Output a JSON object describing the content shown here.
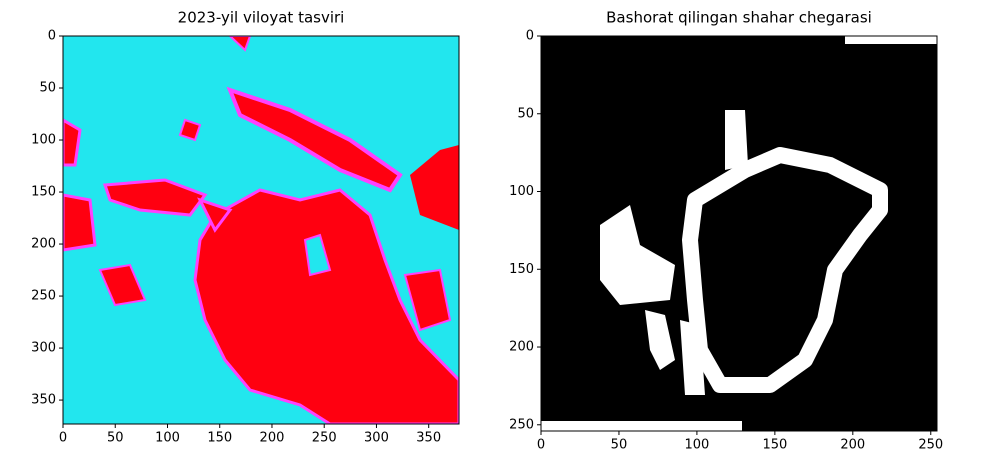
{
  "chart_data": [
    {
      "type": "image",
      "title": "2023-yil viloyat tasviri",
      "xlim": [
        0,
        379
      ],
      "ylim": [
        373,
        0
      ],
      "xticks": [
        0,
        50,
        100,
        150,
        200,
        250,
        300,
        350
      ],
      "yticks": [
        0,
        50,
        100,
        150,
        200,
        250,
        300,
        350
      ]
    },
    {
      "type": "image",
      "title": "Bashorat qilingan shahar chegarasi",
      "xlim": [
        0,
        254
      ],
      "ylim": [
        254,
        0
      ],
      "xticks": [
        0,
        50,
        100,
        150,
        200,
        250
      ],
      "yticks": [
        0,
        50,
        100,
        150,
        200,
        250
      ]
    }
  ]
}
